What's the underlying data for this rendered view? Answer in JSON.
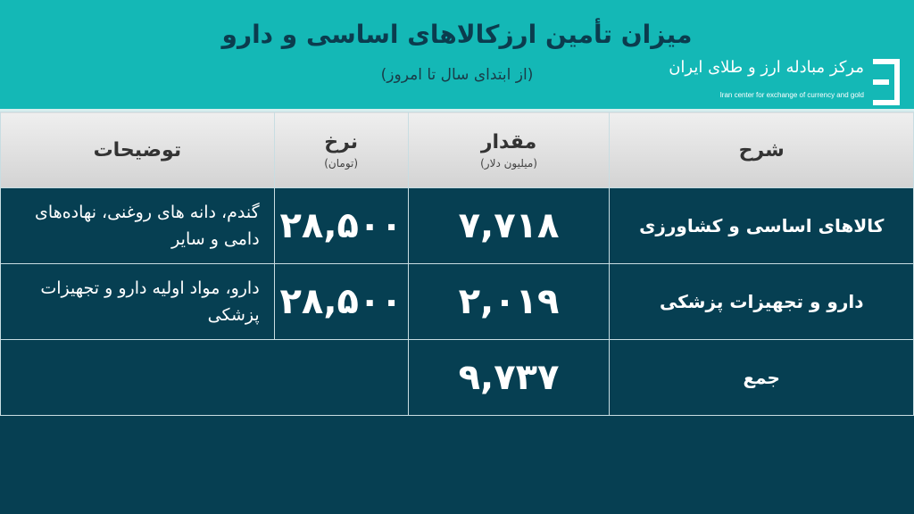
{
  "header": {
    "title": "میزان تأمین ارزکالاهای اساسی و دارو",
    "subtitle": "(از ابتدای سال تا امروز)",
    "logo": {
      "arabic": "مرکز مبادله ارز و طلای ایران",
      "english": "Iran center for exchange of currency and gold"
    }
  },
  "colors": {
    "header": "#14b8b6",
    "body": "#063f52",
    "column_header": "#dcdcdc"
  },
  "table": {
    "columns": [
      {
        "label": "شرح",
        "unit": ""
      },
      {
        "label": "مقدار",
        "unit": "(میلیون دلار)"
      },
      {
        "label": "نرخ",
        "unit": "(تومان)"
      },
      {
        "label": "توضیحات",
        "unit": ""
      }
    ],
    "rows": [
      {
        "label": "کالاهای اساسی و کشاورزی",
        "amount": "۷,۷۱۸",
        "rate": "۲۸,۵۰۰",
        "desc": "گندم، دانه های روغنی، نهاده‌های دامی و سایر"
      },
      {
        "label": "دارو و تجهیزات پزشکی",
        "amount": "۲,۰۱۹",
        "rate": "۲۸,۵۰۰",
        "desc": "دارو، مواد اولیه دارو و تجهیزات پزشکی"
      }
    ],
    "total": {
      "label": "جمع",
      "amount": "۹,۷۳۷"
    }
  }
}
